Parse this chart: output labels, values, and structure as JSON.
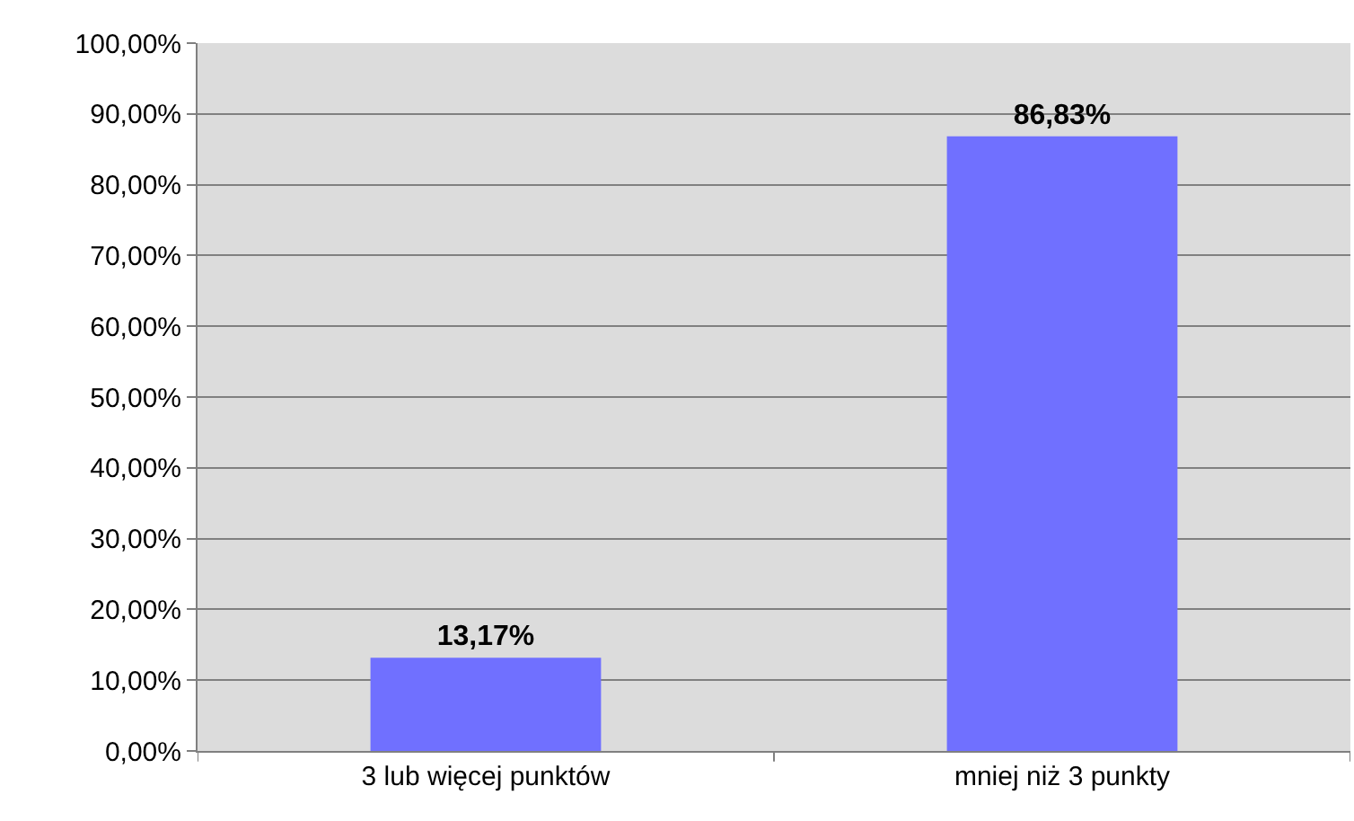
{
  "chart_data": {
    "type": "bar",
    "categories": [
      "3 lub więcej punktów",
      "mniej niż 3 punkty"
    ],
    "values": [
      13.17,
      86.83
    ],
    "value_labels": [
      "13,17%",
      "86,83%"
    ],
    "color": "#7070ff",
    "ylim": [
      0,
      100
    ],
    "yticks": [
      {
        "value": 0,
        "label": "0,00%"
      },
      {
        "value": 10,
        "label": "10,00%"
      },
      {
        "value": 20,
        "label": "20,00%"
      },
      {
        "value": 30,
        "label": "30,00%"
      },
      {
        "value": 40,
        "label": "40,00%"
      },
      {
        "value": 50,
        "label": "50,00%"
      },
      {
        "value": 60,
        "label": "60,00%"
      },
      {
        "value": 70,
        "label": "70,00%"
      },
      {
        "value": 80,
        "label": "80,00%"
      },
      {
        "value": 90,
        "label": "90,00%"
      },
      {
        "value": 100,
        "label": "100,00%"
      }
    ],
    "grid": "y"
  }
}
